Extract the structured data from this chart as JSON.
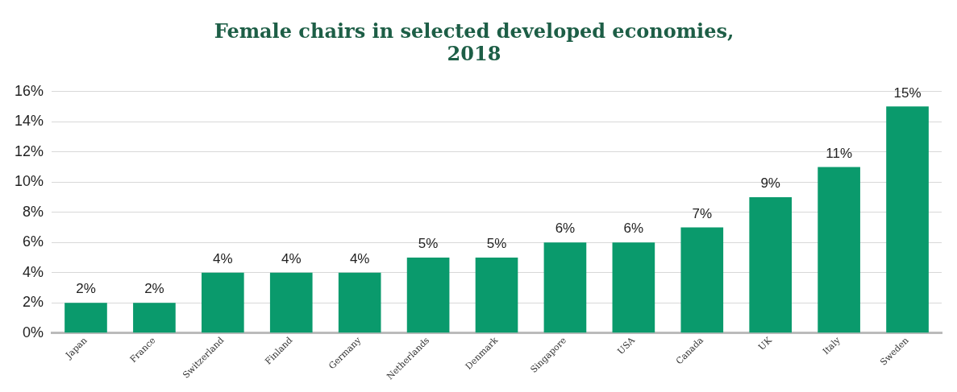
{
  "chart_data": {
    "type": "bar",
    "title": [
      "Female chairs in selected developed economies,",
      "2018"
    ],
    "categories": [
      "Japan",
      "France",
      "Switzerland",
      "Finland",
      "Germany",
      "Netherlands",
      "Denmark",
      "Singapore",
      "USA",
      "Canada",
      "UK",
      "Italy",
      "Sweden"
    ],
    "values": [
      2,
      2,
      4,
      4,
      4,
      5,
      5,
      6,
      6,
      7,
      9,
      11,
      15
    ],
    "value_labels": [
      "2%",
      "2%",
      "4%",
      "4%",
      "4%",
      "5%",
      "5%",
      "6%",
      "6%",
      "7%",
      "9%",
      "11%",
      "15%"
    ],
    "color": "#0a9a6c",
    "ylim": [
      0,
      16
    ],
    "yticks": [
      {
        "value": 0,
        "label": "0%"
      },
      {
        "value": 2,
        "label": "2%"
      },
      {
        "value": 4,
        "label": "4%"
      },
      {
        "value": 6,
        "label": "6%"
      },
      {
        "value": 8,
        "label": "8%"
      },
      {
        "value": 10,
        "label": "10%"
      },
      {
        "value": 12,
        "label": "12%"
      },
      {
        "value": 14,
        "label": "14%"
      },
      {
        "value": 16,
        "label": "16%"
      }
    ],
    "grid": "y"
  }
}
